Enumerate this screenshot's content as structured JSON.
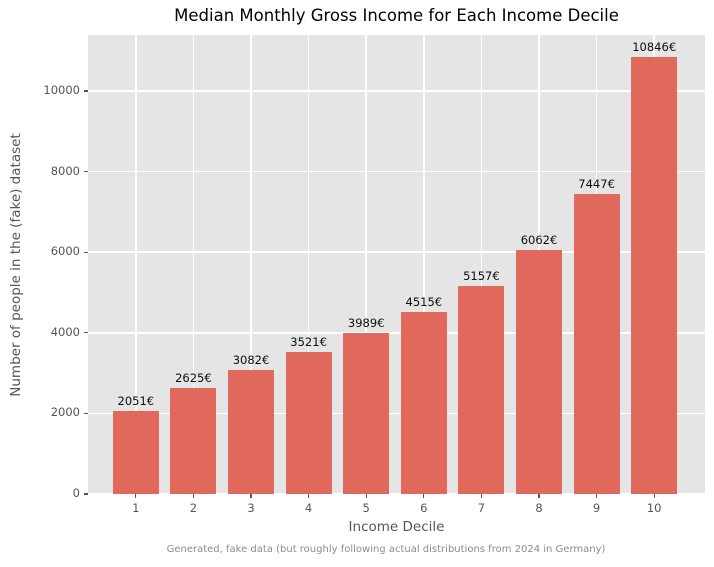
{
  "chart_data": {
    "type": "bar",
    "title": "Median Monthly Gross Income for Each Income Decile",
    "xlabel": "Income Decile",
    "ylabel": "Number of people in the (fake) dataset",
    "categories": [
      "1",
      "2",
      "3",
      "4",
      "5",
      "6",
      "7",
      "8",
      "9",
      "10"
    ],
    "values": [
      2051,
      2625,
      3082,
      3521,
      3989,
      4515,
      5157,
      6062,
      7447,
      10846
    ],
    "value_labels": [
      "2051€",
      "2625€",
      "3082€",
      "3521€",
      "3989€",
      "4515€",
      "5157€",
      "6062€",
      "7447€",
      "10846€"
    ],
    "yticks": [
      0,
      2000,
      4000,
      6000,
      8000,
      10000
    ],
    "ytick_labels": [
      "0",
      "2000",
      "4000",
      "6000",
      "8000",
      "10000"
    ],
    "ylim": [
      0,
      11388
    ],
    "grid": true,
    "legend": false,
    "annotation": "Generated, fake data (but roughly following actual distributions from 2024 in Germany)",
    "colors": {
      "bar": "#e0695c",
      "plot_background": "#e5e5e5",
      "grid": "#ffffff",
      "tick": "#555555",
      "tick_label": "#555555",
      "value_label": "#0d0d0d",
      "footnote": "#8c8c8c"
    }
  }
}
